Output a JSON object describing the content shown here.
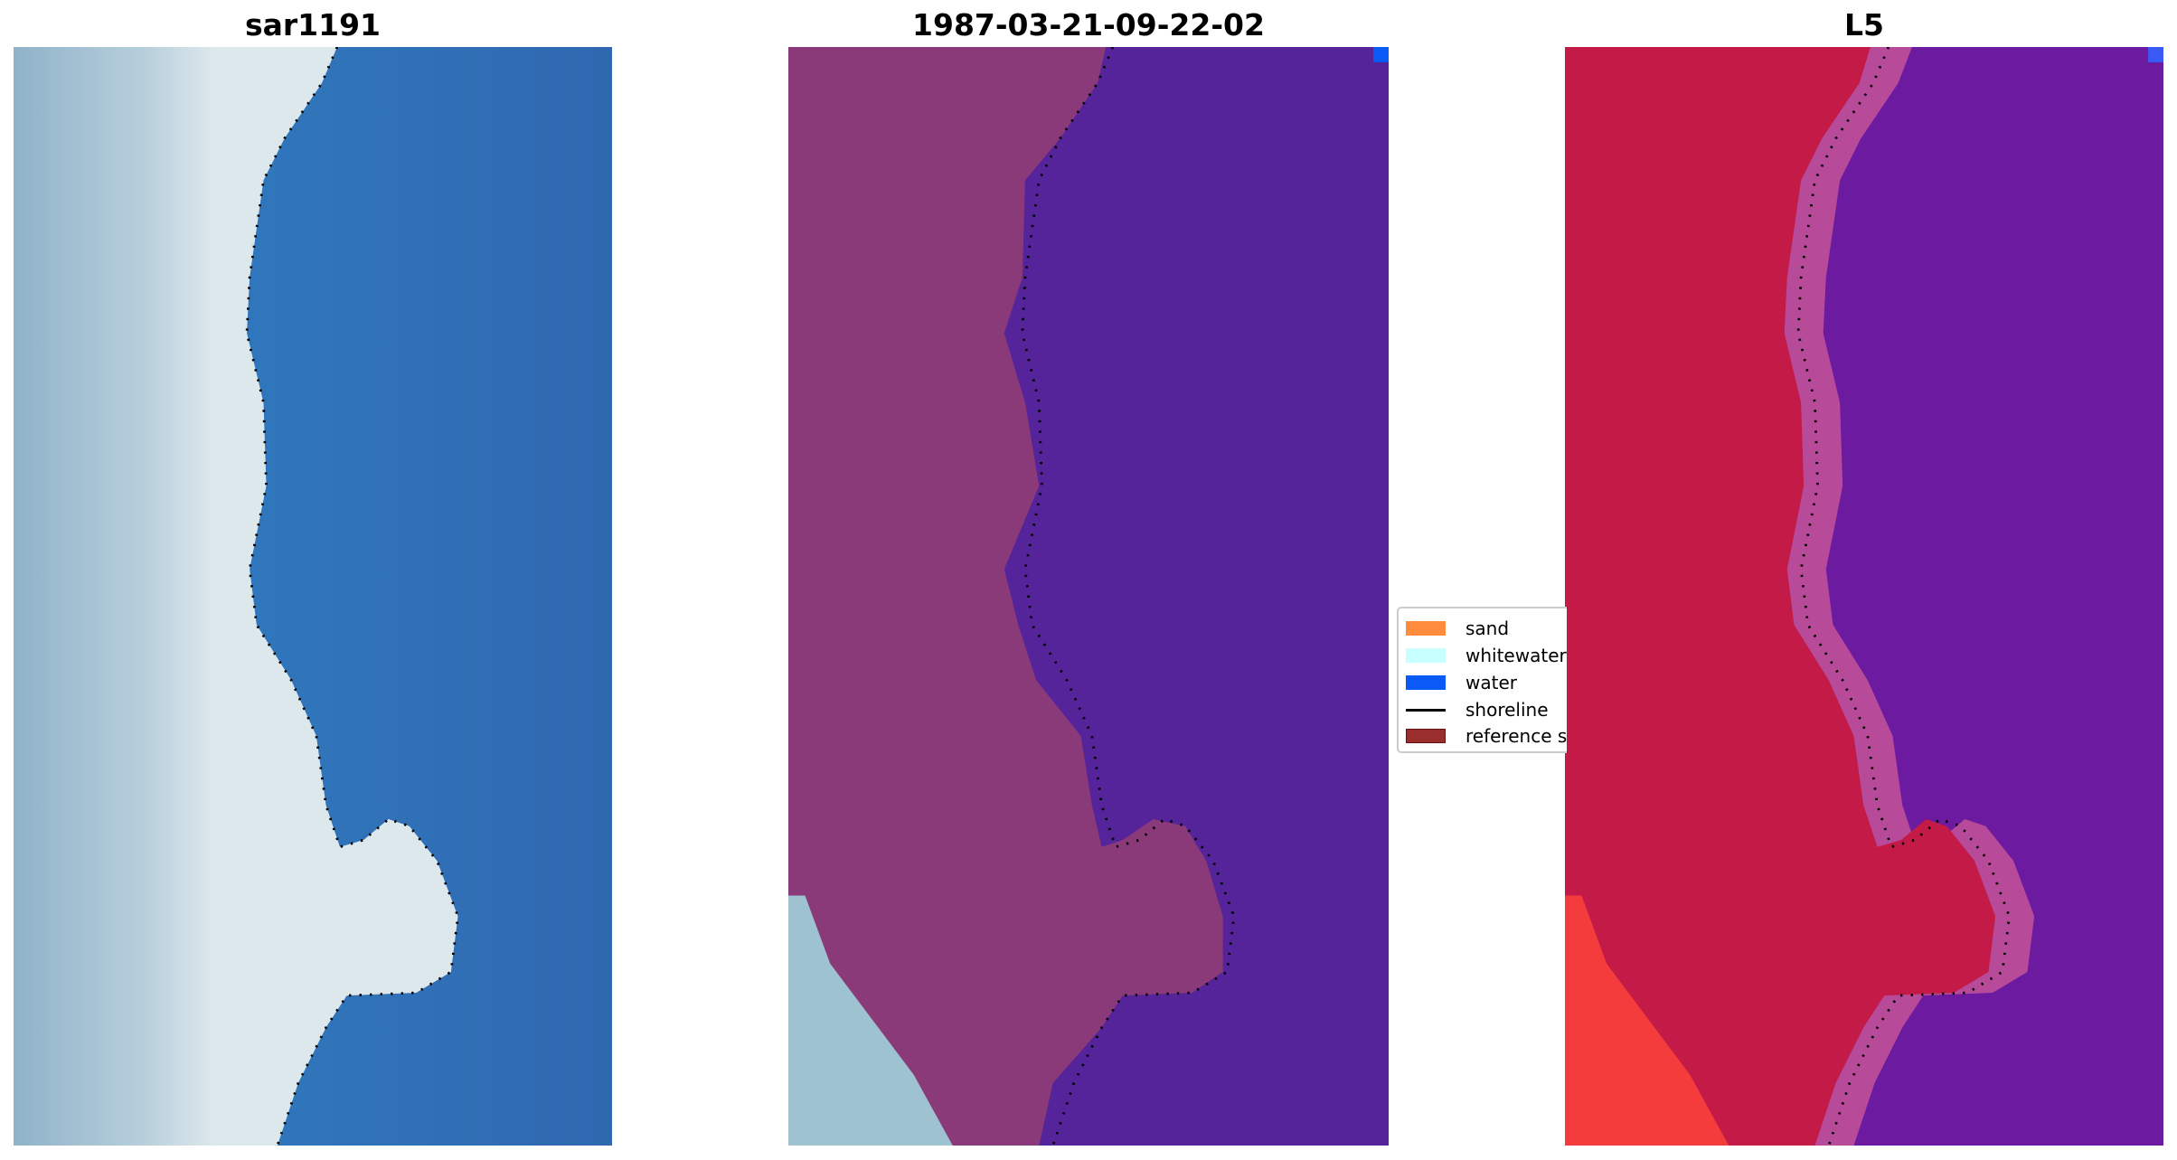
{
  "panels": [
    {
      "title": "sar1191",
      "land_color": "#9ab8cc",
      "water_color": "#3068b0"
    },
    {
      "title": "1987-03-21-09-22-02",
      "land_color": "#8a3a78",
      "water_color": "#55239a",
      "sand": "#f28a3c",
      "whitewater": "#c8ffff",
      "water": "#0a5af5"
    },
    {
      "title": "L5",
      "land_color": "#c41a48",
      "water_color": "#6c1aa0"
    }
  ],
  "legend": {
    "position": "center",
    "items": [
      {
        "label": "sand",
        "color": "#ff8c3c",
        "type": "patch"
      },
      {
        "label": "whitewater",
        "color": "#c8ffff",
        "type": "patch"
      },
      {
        "label": "water",
        "color": "#0a5af5",
        "type": "patch"
      },
      {
        "label": "shoreline",
        "color": "#000000",
        "type": "line"
      },
      {
        "label": "reference s",
        "color": "#9a2e2e",
        "type": "patch"
      }
    ]
  }
}
